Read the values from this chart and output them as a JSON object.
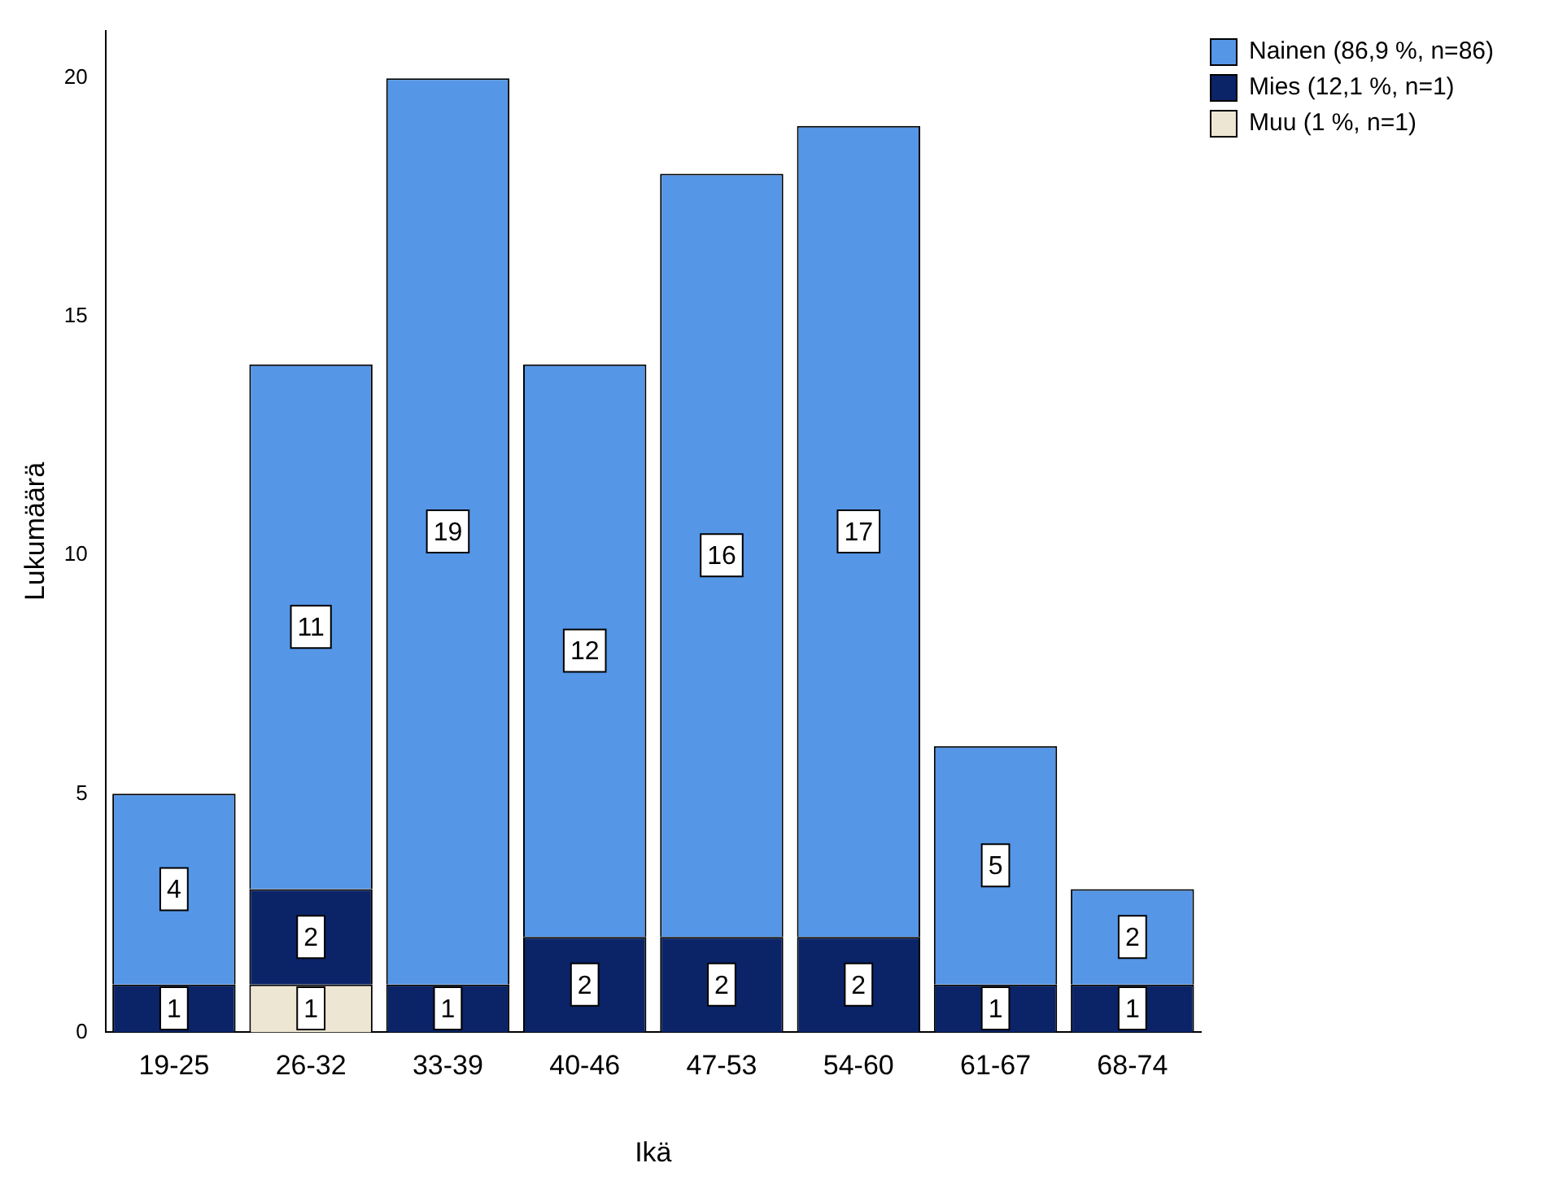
{
  "chart_data": {
    "type": "bar",
    "stacked": true,
    "xlabel": "Ikä",
    "ylabel": "Lukumäärä",
    "categories": [
      "19-25",
      "26-32",
      "33-39",
      "40-46",
      "47-53",
      "54-60",
      "61-67",
      "68-74"
    ],
    "series": [
      {
        "name": "Muu (1 %, n=1)",
        "color": "#ede6d2",
        "values": [
          null,
          1,
          null,
          null,
          null,
          null,
          null,
          null
        ]
      },
      {
        "name": "Mies (12,1 %, n=1)",
        "color": "#0b2468",
        "values": [
          1,
          2,
          1,
          2,
          2,
          2,
          1,
          1
        ]
      },
      {
        "name": "Nainen (86,9 %, n=86)",
        "color": "#5596e6",
        "values": [
          4,
          11,
          19,
          12,
          16,
          17,
          5,
          2
        ]
      }
    ],
    "ylim": [
      0,
      21
    ],
    "yticks": [
      0,
      5,
      10,
      15,
      20
    ],
    "grid": false,
    "legend": "right",
    "data_labels": true
  }
}
